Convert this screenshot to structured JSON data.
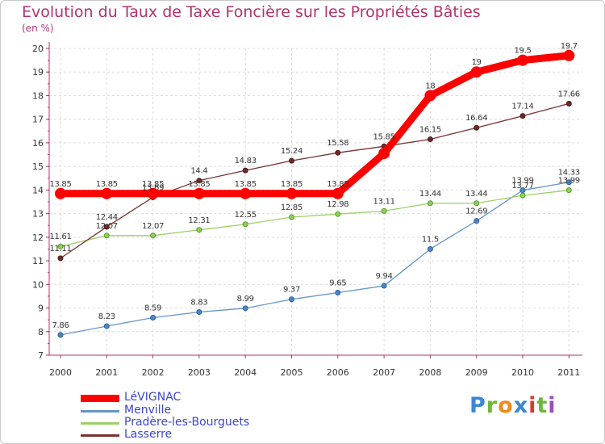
{
  "title": "Evolution du Taux de Taxe Foncière sur les Propriétés Bâties",
  "subtitle": "(en %)",
  "logo": {
    "letters": [
      "P",
      "r",
      "o",
      "x",
      "i",
      "t",
      "i"
    ],
    "colors": [
      "#3a88d4",
      "#6cb83a",
      "#f08a1c",
      "#3a88d4",
      "#d93c2e",
      "#6cb83a",
      "#9a4fb8"
    ]
  },
  "chart_data": {
    "type": "line",
    "title": "Evolution du Taux de Taxe Foncière sur les Propriétés Bâties",
    "ylabel": "(en %)",
    "xlabel": "",
    "x": [
      "2000",
      "2001",
      "2002",
      "2003",
      "2004",
      "2005",
      "2006",
      "2007",
      "2008",
      "2009",
      "2010",
      "2011"
    ],
    "ylim": [
      7,
      20
    ],
    "yticks": [
      "7",
      "8",
      "9",
      "10",
      "11",
      "12",
      "13",
      "14",
      "15",
      "16",
      "17",
      "18",
      "19",
      "20"
    ],
    "grid": true,
    "legend_position": "bottom-left",
    "series": [
      {
        "name": "LéVIGNAC",
        "color": "#ff0000",
        "values": [
          13.85,
          13.85,
          13.85,
          13.85,
          13.85,
          13.85,
          13.85,
          15.55,
          18,
          19,
          19.5,
          19.7
        ],
        "labels": [
          "13.85",
          "13.85",
          "13.85",
          "13.85",
          "13.85",
          "13.85",
          "13.85",
          "",
          "18",
          "19",
          "19.5",
          "19.7"
        ]
      },
      {
        "name": "Menville",
        "color": "#6496c8",
        "values": [
          7.86,
          8.23,
          8.59,
          8.83,
          8.99,
          9.37,
          9.65,
          9.94,
          11.5,
          12.69,
          13.99,
          14.33
        ],
        "labels": [
          "7.86",
          "8.23",
          "8.59",
          "8.83",
          "8.99",
          "9.37",
          "9.65",
          "9.94",
          "11.5",
          "12.69",
          "13.99",
          "14.33"
        ]
      },
      {
        "name": "Pradère-les-Bourguets",
        "color": "#9ad264",
        "values": [
          11.61,
          12.07,
          12.07,
          12.31,
          12.55,
          12.85,
          12.98,
          13.11,
          13.44,
          13.44,
          13.77,
          13.99
        ],
        "labels": [
          "11.61",
          "12.07",
          "12.07",
          "12.31",
          "12.55",
          "12.85",
          "12.98",
          "13.11",
          "13.44",
          "13.44",
          "13.77",
          "13.99"
        ]
      },
      {
        "name": "Lasserre",
        "color": "#783232",
        "values": [
          11.11,
          12.44,
          13.69,
          14.4,
          14.83,
          15.24,
          15.58,
          15.85,
          16.15,
          16.64,
          17.14,
          17.66
        ],
        "labels": [
          "11.11",
          "12.44",
          "13.69",
          "14.4",
          "14.83",
          "15.24",
          "15.58",
          "15.85",
          "16.15",
          "16.64",
          "17.14",
          "17.66"
        ]
      }
    ]
  }
}
